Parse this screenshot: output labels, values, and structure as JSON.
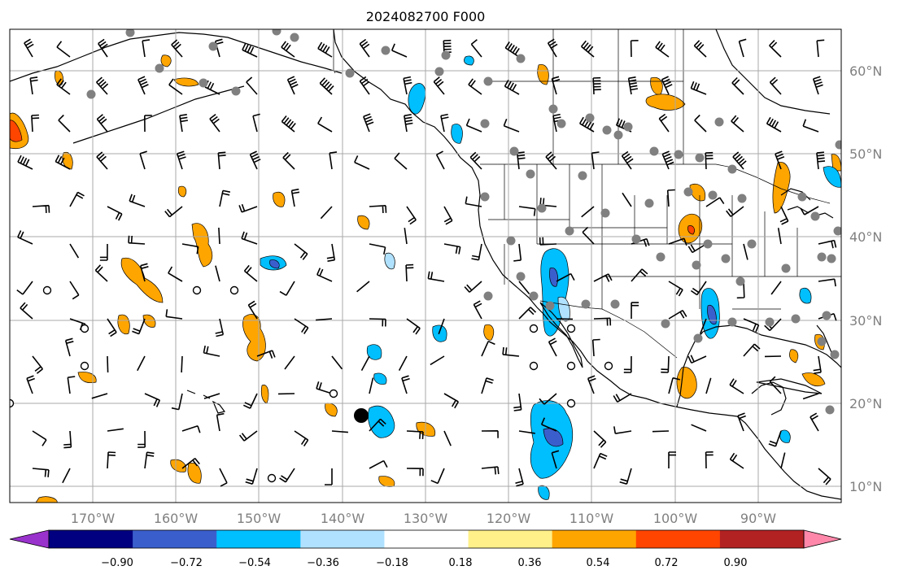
{
  "title": "2024082700 F000",
  "map": {
    "lon_range": [
      -180,
      -80
    ],
    "lat_range": [
      7,
      65
    ],
    "gridlines": true,
    "gridline_color": "#a9a9a9",
    "coastline_color": "#000000",
    "lon_labels": [
      "170°W",
      "160°W",
      "150°W",
      "140°W",
      "130°W",
      "120°W",
      "110°W",
      "100°W",
      "90°W"
    ],
    "lat_labels": [
      "60°N",
      "50°N",
      "40°N",
      "30°N",
      "20°N",
      "10°N"
    ],
    "features": [
      "coastlines",
      "country-borders",
      "us-state-borders",
      "wind-barbs",
      "station-markers",
      "filled-contours"
    ]
  },
  "colorbar": {
    "ticks": [
      "−0.90",
      "−0.72",
      "−0.54",
      "−0.36",
      "−0.18",
      "0.18",
      "0.36",
      "0.54",
      "0.72",
      "0.90"
    ],
    "colors": [
      "#9932cc",
      "#000080",
      "#3a5fcd",
      "#00bfff",
      "#b0e2ff",
      "#ffffff",
      "#fff08a",
      "#ffa500",
      "#ff4500",
      "#b22222",
      "#ff88aa"
    ],
    "extend": "both"
  },
  "colors": {
    "negative_fill": "#00bfff",
    "negative_strong": "#3a5fcd",
    "positive_fill": "#ffa500",
    "positive_strong": "#ff4500",
    "station_dot": "#808080"
  }
}
